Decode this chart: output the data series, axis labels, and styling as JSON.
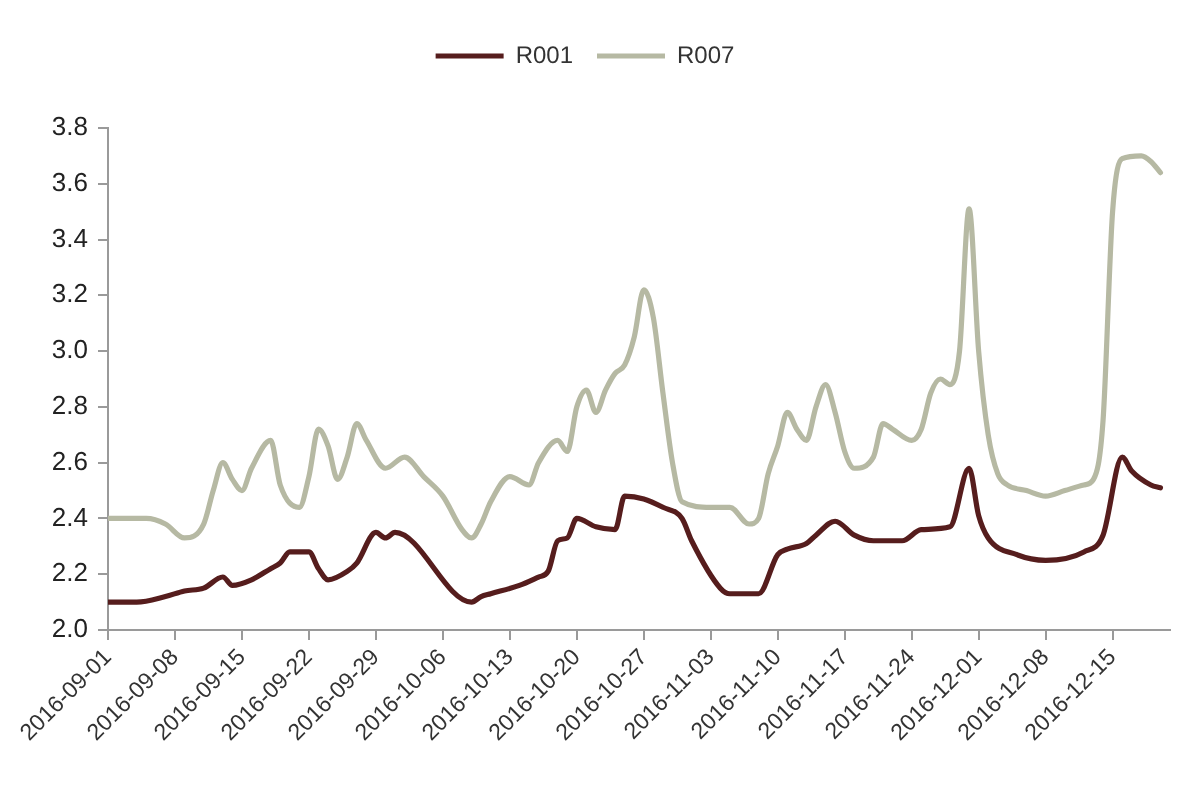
{
  "chart_data": {
    "type": "line",
    "legend": "top",
    "xlim": [
      "2016-09-01",
      "2016-12-21"
    ],
    "xticks": [
      "2016-09-01",
      "2016-09-08",
      "2016-09-15",
      "2016-09-22",
      "2016-09-29",
      "2016-10-06",
      "2016-10-13",
      "2016-10-20",
      "2016-10-27",
      "2016-11-03",
      "2016-11-10",
      "2016-11-17",
      "2016-11-24",
      "2016-12-01",
      "2016-12-08",
      "2016-12-15"
    ],
    "ylim": [
      2,
      3.8
    ],
    "yticks": [
      {
        "value": 2,
        "label": "2.0"
      },
      2.2,
      2.4,
      2.6,
      2.8,
      {
        "value": 3,
        "label": "3.0"
      },
      3.2,
      3.4,
      3.6,
      3.8
    ],
    "series": [
      {
        "name": "R001",
        "color": "#561d1d",
        "x": [
          "2016-09-01",
          "2016-09-04",
          "2016-09-07",
          "2016-09-09",
          "2016-09-11",
          "2016-09-13",
          "2016-09-14",
          "2016-09-16",
          "2016-09-18",
          "2016-09-19",
          "2016-09-20",
          "2016-09-22",
          "2016-09-23",
          "2016-09-24",
          "2016-09-26",
          "2016-09-27",
          "2016-09-29",
          "2016-09-30",
          "2016-10-01",
          "2016-10-09",
          "2016-10-10",
          "2016-10-11",
          "2016-10-14",
          "2016-10-16",
          "2016-10-17",
          "2016-10-18",
          "2016-10-19",
          "2016-10-20",
          "2016-10-22",
          "2016-10-24",
          "2016-10-25",
          "2016-10-27",
          "2016-10-29",
          "2016-10-31",
          "2016-11-01",
          "2016-11-04",
          "2016-11-05",
          "2016-11-08",
          "2016-11-10",
          "2016-11-11",
          "2016-11-13",
          "2016-11-14",
          "2016-11-16",
          "2016-11-18",
          "2016-11-20",
          "2016-11-23",
          "2016-11-25",
          "2016-11-28",
          "2016-11-30",
          "2016-12-01",
          "2016-12-02",
          "2016-12-05",
          "2016-12-08",
          "2016-12-12",
          "2016-12-14",
          "2016-12-16",
          "2016-12-17",
          "2016-12-19",
          "2016-12-20"
        ],
        "values": [
          2.1,
          2.1,
          2.12,
          2.14,
          2.15,
          2.19,
          2.16,
          2.18,
          2.22,
          2.24,
          2.28,
          2.28,
          2.22,
          2.18,
          2.21,
          2.24,
          2.35,
          2.33,
          2.35,
          2.1,
          2.12,
          2.13,
          2.16,
          2.19,
          2.21,
          2.32,
          2.33,
          2.4,
          2.37,
          2.36,
          2.48,
          2.47,
          2.44,
          2.4,
          2.32,
          2.15,
          2.13,
          2.13,
          2.27,
          2.29,
          2.31,
          2.34,
          2.39,
          2.34,
          2.32,
          2.32,
          2.36,
          2.37,
          2.58,
          2.41,
          2.33,
          2.27,
          2.25,
          2.28,
          2.34,
          2.62,
          2.57,
          2.52,
          2.51
        ]
      },
      {
        "name": "R007",
        "color": "#b6b9a3",
        "x": [
          "2016-09-01",
          "2016-09-05",
          "2016-09-07",
          "2016-09-09",
          "2016-09-11",
          "2016-09-12",
          "2016-09-13",
          "2016-09-14",
          "2016-09-15",
          "2016-09-16",
          "2016-09-18",
          "2016-09-19",
          "2016-09-21",
          "2016-09-22",
          "2016-09-23",
          "2016-09-24",
          "2016-09-25",
          "2016-09-26",
          "2016-09-27",
          "2016-09-28",
          "2016-09-30",
          "2016-10-02",
          "2016-10-04",
          "2016-10-06",
          "2016-10-08",
          "2016-10-09",
          "2016-10-10",
          "2016-10-11",
          "2016-10-13",
          "2016-10-15",
          "2016-10-16",
          "2016-10-18",
          "2016-10-19",
          "2016-10-20",
          "2016-10-21",
          "2016-10-22",
          "2016-10-23",
          "2016-10-24",
          "2016-10-25",
          "2016-10-26",
          "2016-10-27",
          "2016-10-28",
          "2016-10-29",
          "2016-10-30",
          "2016-10-31",
          "2016-11-03",
          "2016-11-05",
          "2016-11-07",
          "2016-11-08",
          "2016-11-09",
          "2016-11-10",
          "2016-11-11",
          "2016-11-12",
          "2016-11-13",
          "2016-11-14",
          "2016-11-15",
          "2016-11-16",
          "2016-11-17",
          "2016-11-18",
          "2016-11-20",
          "2016-11-21",
          "2016-11-22",
          "2016-11-24",
          "2016-11-25",
          "2016-11-26",
          "2016-11-27",
          "2016-11-28",
          "2016-11-29",
          "2016-11-30",
          "2016-12-01",
          "2016-12-02",
          "2016-12-03",
          "2016-12-04",
          "2016-12-06",
          "2016-12-08",
          "2016-12-10",
          "2016-12-12",
          "2016-12-13",
          "2016-12-14",
          "2016-12-15",
          "2016-12-16",
          "2016-12-18",
          "2016-12-19",
          "2016-12-20"
        ],
        "values": [
          2.4,
          2.4,
          2.38,
          2.33,
          2.38,
          2.5,
          2.6,
          2.54,
          2.5,
          2.58,
          2.68,
          2.52,
          2.44,
          2.55,
          2.72,
          2.66,
          2.54,
          2.62,
          2.74,
          2.68,
          2.58,
          2.62,
          2.55,
          2.48,
          2.36,
          2.33,
          2.38,
          2.46,
          2.55,
          2.52,
          2.6,
          2.68,
          2.64,
          2.8,
          2.86,
          2.78,
          2.86,
          2.92,
          2.95,
          3.05,
          3.22,
          3.12,
          2.85,
          2.6,
          2.46,
          2.44,
          2.44,
          2.38,
          2.4,
          2.56,
          2.66,
          2.78,
          2.72,
          2.68,
          2.8,
          2.88,
          2.78,
          2.64,
          2.58,
          2.62,
          2.74,
          2.72,
          2.68,
          2.72,
          2.85,
          2.9,
          2.88,
          3.0,
          3.51,
          3.0,
          2.7,
          2.56,
          2.52,
          2.5,
          2.48,
          2.5,
          2.52,
          2.54,
          2.75,
          3.5,
          3.69,
          3.7,
          3.68,
          3.64
        ]
      }
    ]
  }
}
